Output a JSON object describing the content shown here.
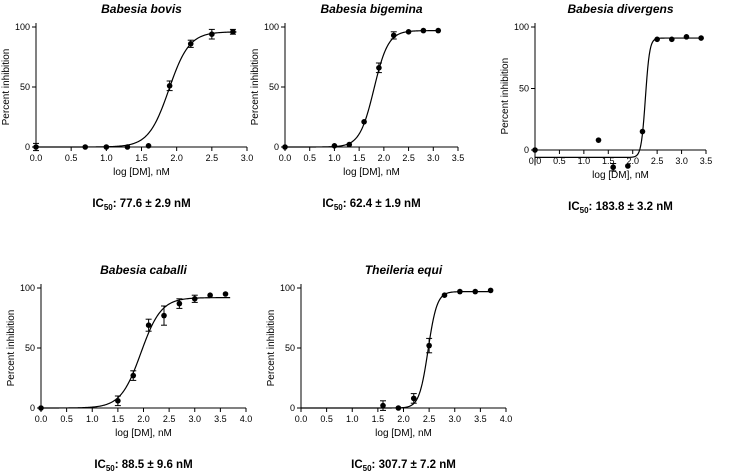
{
  "chart_data": [
    {
      "type": "scatter",
      "title": "Babesia bovis",
      "xlabel": "log [DM], nM",
      "ylabel": "Percent inhibition",
      "xlim": [
        0,
        3.0
      ],
      "ylim": [
        0,
        100
      ],
      "xticks": [
        "0.0",
        "0.5",
        "1.0",
        "1.5",
        "2.0",
        "2.5",
        "3.0"
      ],
      "yticks": [
        "0",
        "50",
        "100"
      ],
      "ic50_prefix": "IC",
      "ic50_sub": "50",
      "ic50_value": ": 77.6 ± 2.9 nM",
      "fit": {
        "bottom": 0,
        "top": 96,
        "logec50": 1.89,
        "hill": 3.0
      },
      "points": [
        {
          "x": 0.0,
          "y": 0,
          "err": 3
        },
        {
          "x": 0.7,
          "y": 0,
          "err": 0
        },
        {
          "x": 1.0,
          "y": 0,
          "err": 0
        },
        {
          "x": 1.3,
          "y": 0,
          "err": 0
        },
        {
          "x": 1.6,
          "y": 1,
          "err": 0
        },
        {
          "x": 1.9,
          "y": 51,
          "err": 4
        },
        {
          "x": 2.2,
          "y": 86,
          "err": 3
        },
        {
          "x": 2.5,
          "y": 94,
          "err": 4
        },
        {
          "x": 2.8,
          "y": 96,
          "err": 2
        }
      ]
    },
    {
      "type": "scatter",
      "title": "Babesia bigemina",
      "xlabel": "log [DM], nM",
      "ylabel": "Percent inhibition",
      "xlim": [
        0,
        3.5
      ],
      "ylim": [
        0,
        100
      ],
      "xticks": [
        "0.0",
        "0.5",
        "1.0",
        "1.5",
        "2.0",
        "2.5",
        "3.0",
        "3.5"
      ],
      "yticks": [
        "0",
        "50",
        "100"
      ],
      "ic50_prefix": "IC",
      "ic50_sub": "50",
      "ic50_value": ": 62.4 ± 1.9 nM",
      "fit": {
        "bottom": 0,
        "top": 97,
        "logec50": 1.8,
        "hill": 3.0
      },
      "points": [
        {
          "x": 0.0,
          "y": 0,
          "err": 0
        },
        {
          "x": 1.0,
          "y": 1,
          "err": 0
        },
        {
          "x": 1.3,
          "y": 2,
          "err": 0
        },
        {
          "x": 1.6,
          "y": 21,
          "err": 0
        },
        {
          "x": 1.9,
          "y": 66,
          "err": 4
        },
        {
          "x": 2.2,
          "y": 93,
          "err": 3
        },
        {
          "x": 2.5,
          "y": 96,
          "err": 0
        },
        {
          "x": 2.8,
          "y": 97,
          "err": 0
        },
        {
          "x": 3.1,
          "y": 97,
          "err": 0
        }
      ]
    },
    {
      "type": "scatter",
      "title": "Babesia divergens",
      "xlabel": "log [DM], nM",
      "ylabel": "Percent inhibition",
      "xlim": [
        0,
        3.5
      ],
      "ylim": [
        -12.5,
        100
      ],
      "xticks": [
        "0.0",
        "0.5",
        "1.0",
        "1.5",
        "2.0",
        "2.5",
        "3.0",
        "3.5"
      ],
      "yticks": [
        "0",
        "50",
        "100"
      ],
      "ic50_prefix": "IC",
      "ic50_sub": "50",
      "ic50_value": ": 183.8 ± 3.2 nM",
      "fit": {
        "bottom": -6,
        "top": 91,
        "logec50": 2.26,
        "hill": 10
      },
      "points": [
        {
          "x": 0.0,
          "y": 0,
          "err": 0
        },
        {
          "x": 1.3,
          "y": 8,
          "err": 0
        },
        {
          "x": 1.6,
          "y": -14,
          "err": 3
        },
        {
          "x": 1.9,
          "y": -13,
          "err": 0
        },
        {
          "x": 2.2,
          "y": 15,
          "err": 0
        },
        {
          "x": 2.5,
          "y": 90,
          "err": 0
        },
        {
          "x": 2.8,
          "y": 90,
          "err": 0
        },
        {
          "x": 3.1,
          "y": 92,
          "err": 0
        },
        {
          "x": 3.4,
          "y": 91,
          "err": 0
        }
      ]
    },
    {
      "type": "scatter",
      "title": "Babesia caballi",
      "xlabel": "log [DM], nM",
      "ylabel": "Percent inhibition",
      "xlim": [
        0,
        4.0
      ],
      "ylim": [
        0,
        100
      ],
      "xticks": [
        "0.0",
        "0.5",
        "1.0",
        "1.5",
        "2.0",
        "2.5",
        "3.0",
        "3.5",
        "4.0"
      ],
      "yticks": [
        "0",
        "50",
        "100"
      ],
      "ic50_prefix": "IC",
      "ic50_sub": "50",
      "ic50_value": ": 88.5 ± 9.6 nM",
      "fit": {
        "bottom": 0,
        "top": 92,
        "logec50": 1.95,
        "hill": 2.2
      },
      "points": [
        {
          "x": 0.0,
          "y": 0,
          "err": 0
        },
        {
          "x": 1.5,
          "y": 6,
          "err": 4
        },
        {
          "x": 1.8,
          "y": 27,
          "err": 4
        },
        {
          "x": 2.1,
          "y": 69,
          "err": 5
        },
        {
          "x": 2.4,
          "y": 77,
          "err": 8
        },
        {
          "x": 2.7,
          "y": 87,
          "err": 4
        },
        {
          "x": 3.0,
          "y": 91,
          "err": 3
        },
        {
          "x": 3.3,
          "y": 94,
          "err": 0
        },
        {
          "x": 3.6,
          "y": 95,
          "err": 0
        }
      ]
    },
    {
      "type": "scatter",
      "title": "Theileria equi",
      "xlabel": "log [DM], nM",
      "ylabel": "Percent inhibition",
      "xlim": [
        0,
        4.0
      ],
      "ylim": [
        0,
        100
      ],
      "xticks": [
        "0.0",
        "0.5",
        "1.0",
        "1.5",
        "2.0",
        "2.5",
        "3.0",
        "3.5",
        "4.0"
      ],
      "yticks": [
        "0",
        "50",
        "100"
      ],
      "ic50_prefix": "IC",
      "ic50_sub": "50",
      "ic50_value": ": 307.7 ± 7.2 nM",
      "fit": {
        "bottom": 0,
        "top": 97,
        "logec50": 2.48,
        "hill": 5.0
      },
      "points": [
        {
          "x": 1.6,
          "y": 2,
          "err": 4
        },
        {
          "x": 1.9,
          "y": 0,
          "err": 0
        },
        {
          "x": 2.2,
          "y": 8,
          "err": 4
        },
        {
          "x": 2.5,
          "y": 52,
          "err": 6
        },
        {
          "x": 2.8,
          "y": 94,
          "err": 0
        },
        {
          "x": 3.1,
          "y": 97,
          "err": 0
        },
        {
          "x": 3.4,
          "y": 97,
          "err": 0
        },
        {
          "x": 3.7,
          "y": 98,
          "err": 0
        }
      ]
    }
  ]
}
